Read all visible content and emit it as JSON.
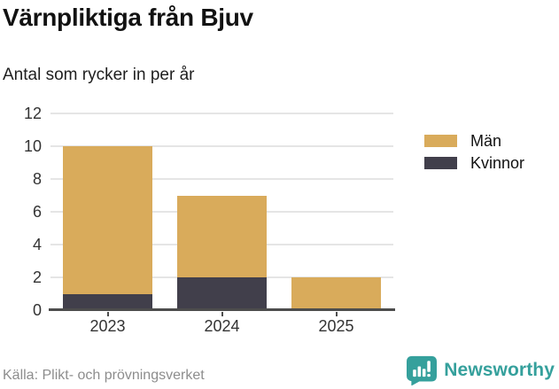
{
  "chart_data": {
    "type": "bar",
    "stacked": true,
    "title": "Värnpliktiga från Bjuv",
    "subtitle": "Antal som rycker in per år",
    "categories": [
      "2023",
      "2024",
      "2025"
    ],
    "series": [
      {
        "name": "Män",
        "color": "#d9ab5b",
        "values": [
          9,
          5,
          2
        ]
      },
      {
        "name": "Kvinnor",
        "color": "#413f4b",
        "values": [
          1,
          2,
          0
        ]
      }
    ],
    "totals": [
      10,
      7,
      2
    ],
    "xlabel": "",
    "ylabel": "",
    "ylim": [
      0,
      12
    ],
    "yticks": [
      0,
      2,
      4,
      6,
      8,
      10,
      12
    ],
    "grid": "horizontal",
    "legend_position": "right"
  },
  "footer": {
    "source": "Källa: Plikt- och prövningsverket"
  },
  "branding": {
    "name": "Newsworthy",
    "logo_icon": "bar-chart-speech-bubble-icon",
    "color": "#35a09c"
  },
  "colors": {
    "bar_men": "#d9ab5b",
    "bar_women": "#413f4b",
    "gridline": "#e5e5e5",
    "axis": "#4d4d4d",
    "tick_text": "#333333",
    "title_text": "#121212",
    "muted_text": "#8d8d8d",
    "brand_teal": "#35a09c"
  }
}
